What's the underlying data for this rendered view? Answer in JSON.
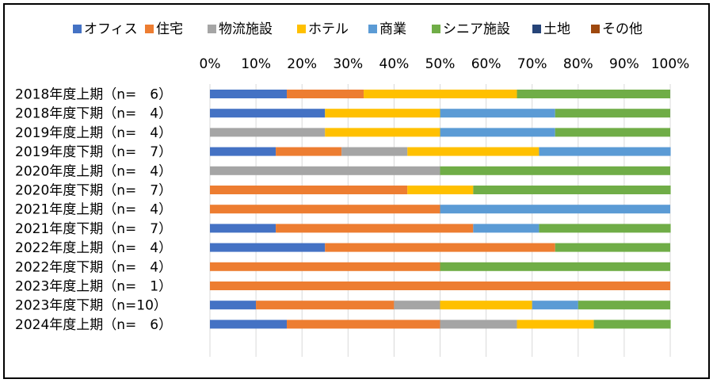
{
  "chart_data": {
    "type": "bar",
    "orientation": "horizontal",
    "stacked": "percent",
    "legend_position": "top",
    "x_ticks": [
      "0%",
      "10%",
      "20%",
      "30%",
      "40%",
      "50%",
      "60%",
      "70%",
      "80%",
      "90%",
      "100%"
    ],
    "xlim": [
      0,
      100
    ],
    "grid": true,
    "categories": [
      "2018年度上期（n=　6）",
      "2018年度下期（n=　4）",
      "2019年度上期（n=　4）",
      "2019年度下期（n=　7）",
      "2020年度上期（n=　4）",
      "2020年度下期（n=　7）",
      "2021年度上期（n=　4）",
      "2021年度下期（n=　7）",
      "2022年度上期（n=　4）",
      "2022年度下期（n=　4）",
      "2023年度上期（n=　1）",
      "2023年度下期（n=10）",
      "2024年度上期（n=　6）"
    ],
    "series": [
      {
        "name": "オフィス",
        "color": "#4472C4",
        "values": [
          16.7,
          25,
          0,
          14.3,
          0,
          0,
          0,
          14.3,
          25,
          0,
          0,
          10,
          16.7
        ]
      },
      {
        "name": "住宅",
        "color": "#ED7D31",
        "values": [
          16.7,
          0,
          0,
          14.3,
          0,
          42.9,
          50,
          42.9,
          50,
          50,
          100,
          30,
          33.3
        ]
      },
      {
        "name": "物流施設",
        "color": "#A5A5A5",
        "values": [
          0,
          0,
          25,
          14.3,
          50,
          0,
          0,
          0,
          0,
          0,
          0,
          10,
          16.7
        ]
      },
      {
        "name": "ホテル",
        "color": "#FFC000",
        "values": [
          33.3,
          25,
          25,
          28.6,
          0,
          14.3,
          0,
          0,
          0,
          0,
          0,
          20,
          16.7
        ]
      },
      {
        "name": "商業",
        "color": "#5B9BD5",
        "values": [
          0,
          25,
          25,
          28.6,
          0,
          0,
          50,
          14.3,
          0,
          0,
          0,
          10,
          0
        ]
      },
      {
        "name": "シニア施設",
        "color": "#70AD47",
        "values": [
          33.3,
          25,
          25,
          0,
          50,
          42.9,
          0,
          28.6,
          25,
          50,
          0,
          20,
          16.7
        ]
      },
      {
        "name": "土地",
        "color": "#264478",
        "values": [
          0,
          0,
          0,
          0,
          0,
          0,
          0,
          0,
          0,
          0,
          0,
          0,
          0
        ]
      },
      {
        "name": "その他",
        "color": "#9E480E",
        "values": [
          0,
          0,
          0,
          0,
          0,
          0,
          0,
          0,
          0,
          0,
          0,
          0,
          0
        ]
      }
    ]
  }
}
